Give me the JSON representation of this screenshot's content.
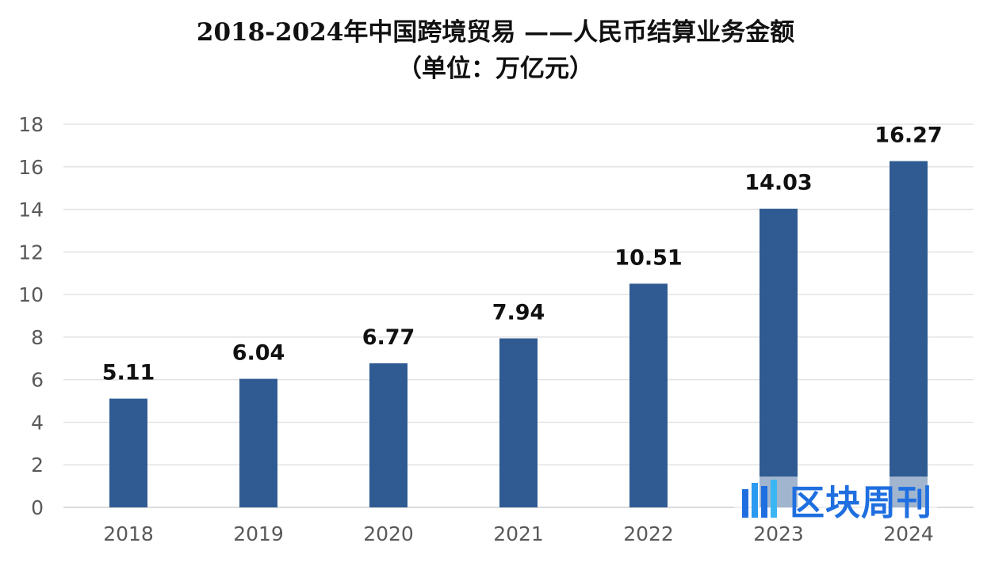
{
  "chart_data": {
    "type": "bar",
    "title": "2018-2024年中国跨境贸易 ——人民币结算业务金额",
    "subtitle": "（单位：万亿元）",
    "categories": [
      "2018",
      "2019",
      "2020",
      "2021",
      "2022",
      "2023",
      "2024"
    ],
    "values": [
      5.11,
      6.04,
      6.77,
      7.94,
      10.51,
      14.03,
      16.27
    ],
    "data_labels": [
      "5.11",
      "6.04",
      "6.77",
      "7.94",
      "10.51",
      "14.03",
      "16.27"
    ],
    "ylim": [
      0,
      18
    ],
    "yticks": [
      0,
      2,
      4,
      6,
      8,
      10,
      12,
      14,
      16,
      18
    ],
    "grid": true,
    "bar_color": "#2f5b92",
    "xlabel": "",
    "ylabel": ""
  },
  "watermark": {
    "text": "区块周刊",
    "color": "#1f6fe0"
  }
}
